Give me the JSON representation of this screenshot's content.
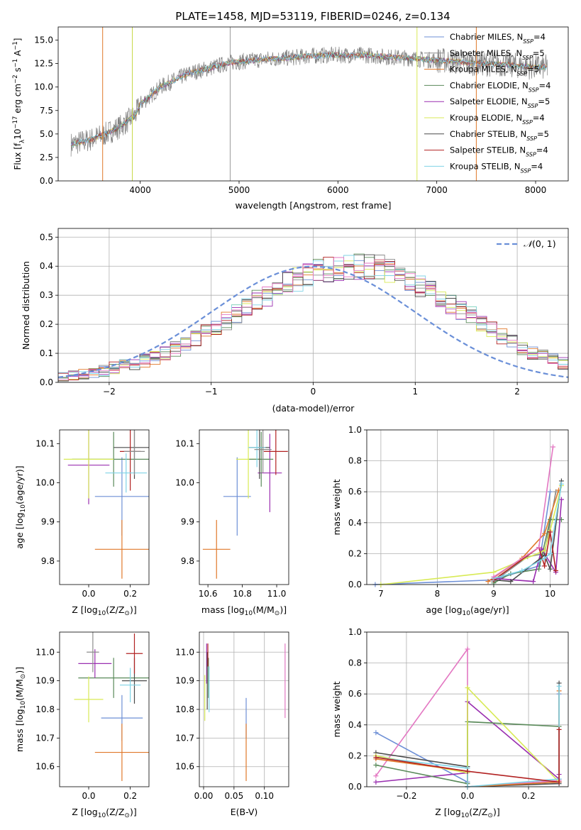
{
  "title": "PLATE=1458, MJD=53119, FIBERID=0246, z=0.134",
  "colors": {
    "Chabrier MILES": "#6d8fd6",
    "Salpeter MILES": "#8c8c8c",
    "Kroupa MILES": "#e0782a",
    "Chabrier ELODIE": "#5a8a5a",
    "Salpeter ELODIE": "#9a2fb0",
    "Kroupa ELODIE": "#d8ea55",
    "Chabrier STELIB": "#4a4a4a",
    "Salpeter STELIB": "#b22222",
    "Kroupa STELIB": "#7fd3e6",
    "gaussian": "#6a8fd8"
  },
  "chart_data": [
    {
      "id": "spectrum",
      "type": "line",
      "xlabel": "wavelength [Angstrom, rest frame]",
      "ylabel": "Flux [f$_λ$10$^{-17}$ erg cm$^{-2}$ s$^{-1}$ A$^{-1}$]",
      "ylabel_parts": {
        "a": "Flux [f",
        "b": "λ",
        "c": "10",
        "d": "−17",
        "e": " erg cm",
        "f": "−2",
        "g": " s",
        "h": "−1",
        "i": " A",
        "j": "−1",
        "k": "]"
      },
      "xlim": [
        3170,
        8330
      ],
      "ylim": [
        0,
        16.4
      ],
      "xticks": [
        4000,
        5000,
        6000,
        7000,
        8000
      ],
      "yticks": [
        0.0,
        2.5,
        5.0,
        7.5,
        10.0,
        12.5,
        15.0
      ],
      "ytick_labels": [
        "0.0",
        "2.5",
        "5.0",
        "7.5",
        "10.0",
        "12.5",
        "15.0"
      ],
      "data_trend": {
        "x": [
          3300,
          3500,
          3650,
          3800,
          3950,
          4000,
          4100,
          4200,
          4300,
          4400,
          4500,
          4700,
          4900,
          5100,
          5300,
          5500,
          5700,
          5900,
          6100,
          6300,
          6500,
          6700,
          6900,
          7100,
          7300,
          7500,
          7700,
          7900,
          8100
        ],
        "y": [
          3.9,
          4.4,
          5.0,
          5.8,
          7.0,
          8.2,
          9.0,
          10.0,
          10.5,
          11.0,
          11.5,
          12.0,
          12.6,
          12.8,
          13.0,
          13.1,
          13.3,
          13.4,
          13.4,
          13.4,
          13.2,
          13.1,
          12.9,
          12.8,
          12.6,
          12.5,
          12.4,
          12.2,
          12.1
        ]
      },
      "legend_position": "upper-right",
      "legend": [
        {
          "model": "Chabrier MILES",
          "label": "Chabrier MILES, N",
          "sub": "SSP",
          "val": "=4"
        },
        {
          "model": "Salpeter MILES",
          "label": "Salpeter MILES, N",
          "sub": "SSP",
          "val": "=5"
        },
        {
          "model": "Kroupa MILES",
          "label": "Kroupa MILES, N",
          "sub": "SSP",
          "val": "=5"
        },
        {
          "model": "Chabrier ELODIE",
          "label": "Chabrier ELODIE, N",
          "sub": "SSP",
          "val": "=4"
        },
        {
          "model": "Salpeter ELODIE",
          "label": "Salpeter ELODIE, N",
          "sub": "SSP",
          "val": "=5"
        },
        {
          "model": "Kroupa ELODIE",
          "label": "Kroupa ELODIE, N",
          "sub": "SSP",
          "val": "=4"
        },
        {
          "model": "Chabrier STELIB",
          "label": "Chabrier STELIB, N",
          "sub": "SSP",
          "val": "=5"
        },
        {
          "model": "Salpeter STELIB",
          "label": "Salpeter STELIB, N",
          "sub": "SSP",
          "val": "=4"
        },
        {
          "model": "Kroupa STELIB",
          "label": "Kroupa STELIB, N",
          "sub": "SSP",
          "val": "=4"
        }
      ]
    },
    {
      "id": "residuals",
      "type": "bar",
      "xlabel": "(data-model)/error",
      "ylabel": "Normed distribution",
      "xlim": [
        -2.5,
        2.5
      ],
      "ylim": [
        0,
        0.53
      ],
      "xticks": [
        -2,
        -1,
        0,
        1,
        2
      ],
      "xtick_labels": [
        "−2",
        "−1",
        "0",
        "1",
        "2"
      ],
      "yticks": [
        0.0,
        0.1,
        0.2,
        0.3,
        0.4,
        0.5
      ],
      "ytick_labels": [
        "0.0",
        "0.1",
        "0.2",
        "0.3",
        "0.4",
        "0.5"
      ],
      "grid": true,
      "bin_width": 0.1,
      "bin_start": -2.5,
      "base_hist": [
        0.02,
        0.025,
        0.03,
        0.035,
        0.04,
        0.05,
        0.06,
        0.065,
        0.075,
        0.085,
        0.1,
        0.115,
        0.13,
        0.15,
        0.17,
        0.19,
        0.21,
        0.235,
        0.26,
        0.28,
        0.3,
        0.32,
        0.34,
        0.355,
        0.37,
        0.38,
        0.39,
        0.395,
        0.4,
        0.4,
        0.4,
        0.395,
        0.38,
        0.37,
        0.35,
        0.335,
        0.31,
        0.29,
        0.27,
        0.25,
        0.23,
        0.2,
        0.18,
        0.16,
        0.14,
        0.12,
        0.1,
        0.09,
        0.075,
        0.065,
        0.055,
        0.045,
        0.04,
        0.035,
        0.03,
        0.03
      ],
      "gaussian": {
        "label_prefix": "𝒩",
        "label_suffix": "(0, 1)",
        "mu": 0,
        "sigma": 1
      },
      "legend_position": "upper-right"
    },
    {
      "id": "age-vs-Z",
      "type": "scatter",
      "xlabel_parts": {
        "a": "Z [log",
        "b": "10",
        "c": "(Z/Z",
        "d": "⊙",
        "e": ")]"
      },
      "ylabel_parts": {
        "a": "age  [log",
        "b": "10",
        "c": "(age/yr)]"
      },
      "xlim": [
        -0.14,
        0.29
      ],
      "ylim": [
        9.74,
        10.135
      ],
      "xticks": [
        0.0,
        0.2
      ],
      "xtick_labels": [
        "0.0",
        "0.2"
      ],
      "yticks": [
        9.8,
        9.9,
        10.0,
        10.1
      ],
      "ytick_labels": [
        "9.8",
        "9.9",
        "10.0",
        "10.1"
      ],
      "points": [
        {
          "model": "Chabrier MILES",
          "x": 0.16,
          "xerr": 0.13,
          "y": 9.965,
          "yerr": 0.1
        },
        {
          "model": "Kroupa MILES",
          "x": 0.16,
          "xerr": 0.13,
          "y": 9.83,
          "yerr": 0.075
        },
        {
          "model": "Chabrier ELODIE",
          "x": 0.12,
          "xerr": 0.2,
          "y": 10.06,
          "yerr": 0.07
        },
        {
          "model": "Salpeter ELODIE",
          "x": 0.0,
          "xerr": 0.1,
          "y": 10.045,
          "yerr": 0.1
        },
        {
          "model": "Kroupa ELODIE",
          "x": 0.0,
          "xerr": 0.12,
          "y": 10.06,
          "yerr": 0.1
        },
        {
          "model": "Chabrier STELIB",
          "x": 0.22,
          "xerr": 0.1,
          "y": 10.09,
          "yerr": 0.08
        },
        {
          "model": "Salpeter STELIB",
          "x": 0.2,
          "xerr": 0.05,
          "y": 10.08,
          "yerr": 0.1
        },
        {
          "model": "Kroupa STELIB",
          "x": 0.18,
          "xerr": 0.1,
          "y": 10.025,
          "yerr": 0.05
        },
        {
          "model": "Salpeter MILES",
          "x": 0.22,
          "xerr": 0.05,
          "y": 10.08,
          "yerr": 0.06
        }
      ]
    },
    {
      "id": "age-vs-mass",
      "type": "scatter",
      "xlabel_parts": {
        "a": "mass [log",
        "b": "10",
        "c": "(M/M",
        "d": "⊙",
        "e": ")]"
      },
      "xlim": [
        10.55,
        11.07
      ],
      "ylim": [
        9.74,
        10.135
      ],
      "xticks": [
        10.6,
        10.8,
        11.0
      ],
      "xtick_labels": [
        "10.6",
        "10.8",
        "11.0"
      ],
      "yticks": [
        9.8,
        9.9,
        10.0,
        10.1
      ],
      "ytick_labels": [
        "9.8",
        "9.9",
        "10.0",
        "10.1"
      ],
      "points": [
        {
          "model": "Chabrier MILES",
          "x": 10.77,
          "xerr": 0.08,
          "y": 9.965,
          "yerr": 0.1
        },
        {
          "model": "Kroupa MILES",
          "x": 10.65,
          "xerr": 0.08,
          "y": 9.83,
          "yerr": 0.075
        },
        {
          "model": "Kroupa ELODIE",
          "x": 10.835,
          "xerr": 0.07,
          "y": 10.06,
          "yerr": 0.1
        },
        {
          "model": "Salpeter ELODIE",
          "x": 10.96,
          "xerr": 0.07,
          "y": 10.025,
          "yerr": 0.1
        },
        {
          "model": "Chabrier ELODIE",
          "x": 10.91,
          "xerr": 0.07,
          "y": 10.06,
          "yerr": 0.07
        },
        {
          "model": "Chabrier STELIB",
          "x": 10.9,
          "xerr": 0.06,
          "y": 10.09,
          "yerr": 0.08
        },
        {
          "model": "Salpeter STELIB",
          "x": 10.995,
          "xerr": 0.07,
          "y": 10.08,
          "yerr": 0.06
        },
        {
          "model": "Kroupa STELIB",
          "x": 10.885,
          "xerr": 0.05,
          "y": 10.09,
          "yerr": 0.05
        },
        {
          "model": "Salpeter MILES",
          "x": 10.92,
          "xerr": 0.05,
          "y": 10.085,
          "yerr": 0.06
        }
      ]
    },
    {
      "id": "massweight-vs-age",
      "type": "line",
      "xlabel_parts": {
        "a": "age  [log",
        "b": "10",
        "c": "(age/yr)]"
      },
      "ylabel": "mass weight",
      "xlim": [
        6.75,
        10.32
      ],
      "ylim": [
        0,
        1.0
      ],
      "xticks": [
        7,
        8,
        9,
        10
      ],
      "xtick_labels": [
        "7",
        "8",
        "9",
        "10"
      ],
      "yticks": [
        0.0,
        0.2,
        0.4,
        0.6,
        0.8,
        1.0
      ],
      "ytick_labels": [
        "0.0",
        "0.2",
        "0.4",
        "0.6",
        "0.8",
        "1.0"
      ],
      "grid": true,
      "series": [
        {
          "model": "Chabrier MILES",
          "x": [
            6.9,
            9.0,
            9.8,
            10.0
          ],
          "y": [
            0.0,
            0.03,
            0.12,
            0.6
          ]
        },
        {
          "model": "Salpeter MILES",
          "x": [
            9.0,
            9.6,
            9.9,
            10.1
          ],
          "y": [
            0.02,
            0.18,
            0.2,
            0.6
          ]
        },
        {
          "model": "Kroupa MILES",
          "x": [
            8.9,
            9.5,
            9.9,
            10.15
          ],
          "y": [
            0.02,
            0.17,
            0.33,
            0.61
          ]
        },
        {
          "model": "Chabrier ELODIE",
          "x": [
            9.0,
            9.3,
            9.8,
            10.0,
            10.2
          ],
          "y": [
            0.01,
            0.07,
            0.1,
            0.42,
            0.42
          ]
        },
        {
          "model": "Salpeter ELODIE",
          "x": [
            9.0,
            9.7,
            9.85,
            10.1,
            10.2
          ],
          "y": [
            0.04,
            0.02,
            0.23,
            0.08,
            0.55
          ]
        },
        {
          "model": "Kroupa ELODIE",
          "x": [
            7.0,
            9.0,
            9.9,
            10.0,
            10.2
          ],
          "y": [
            0.0,
            0.08,
            0.22,
            0.35,
            0.64
          ]
        },
        {
          "model": "Chabrier STELIB",
          "x": [
            9.0,
            9.3,
            9.9,
            10.0,
            10.2
          ],
          "y": [
            0.03,
            0.02,
            0.19,
            0.1,
            0.67
          ]
        },
        {
          "model": "Salpeter STELIB",
          "x": [
            9.0,
            9.8,
            9.9,
            10.0,
            10.1
          ],
          "y": [
            0.03,
            0.24,
            0.12,
            0.34,
            0.09
          ]
        },
        {
          "model": "Kroupa STELIB",
          "x": [
            9.0,
            9.5,
            9.9,
            10.0,
            10.2
          ],
          "y": [
            0.04,
            0.09,
            0.17,
            0.2,
            0.65
          ]
        },
        {
          "model": "pink",
          "x": [
            9.0,
            9.8,
            10.05
          ],
          "y": [
            0.05,
            0.24,
            0.89
          ]
        }
      ]
    },
    {
      "id": "mass-vs-Z",
      "type": "scatter",
      "xlabel_parts": {
        "a": "Z [log",
        "b": "10",
        "c": "(Z/Z",
        "d": "⊙",
        "e": ")]"
      },
      "ylabel_parts": {
        "a": "mass [log",
        "b": "10",
        "c": "(M/M",
        "d": "⊙",
        "e": ")]"
      },
      "xlim": [
        -0.14,
        0.29
      ],
      "ylim": [
        10.53,
        11.07
      ],
      "xticks": [
        0.0,
        0.2
      ],
      "xtick_labels": [
        "0.0",
        "0.2"
      ],
      "yticks": [
        10.6,
        10.7,
        10.8,
        10.9,
        11.0
      ],
      "ytick_labels": [
        "10.6",
        "10.7",
        "10.8",
        "10.9",
        "11.0"
      ],
      "points": [
        {
          "model": "Chabrier MILES",
          "x": 0.16,
          "xerr": 0.1,
          "y": 10.77,
          "yerr": 0.08
        },
        {
          "model": "Kroupa MILES",
          "x": 0.16,
          "xerr": 0.13,
          "y": 10.65,
          "yerr": 0.1
        },
        {
          "model": "Chabrier ELODIE",
          "x": 0.12,
          "xerr": 0.17,
          "y": 10.91,
          "yerr": 0.07
        },
        {
          "model": "Salpeter ELODIE",
          "x": 0.03,
          "xerr": 0.08,
          "y": 10.96,
          "yerr": 0.05
        },
        {
          "model": "Kroupa ELODIE",
          "x": 0.0,
          "xerr": 0.07,
          "y": 10.835,
          "yerr": 0.08
        },
        {
          "model": "Chabrier STELIB",
          "x": 0.22,
          "xerr": 0.06,
          "y": 10.9,
          "yerr": 0.08
        },
        {
          "model": "Salpeter STELIB",
          "x": 0.22,
          "xerr": 0.04,
          "y": 10.995,
          "yerr": 0.07
        },
        {
          "model": "Kroupa STELIB",
          "x": 0.2,
          "xerr": 0.05,
          "y": 10.885,
          "yerr": 0.06
        },
        {
          "model": "Salpeter MILES",
          "x": 0.02,
          "xerr": 0.03,
          "y": 11.0,
          "yerr": 0.07
        }
      ]
    },
    {
      "id": "mass-vs-EBV",
      "type": "scatter",
      "xlabel": "E(B-V)",
      "xlim": [
        -0.007,
        0.14
      ],
      "ylim": [
        10.53,
        11.07
      ],
      "xticks": [
        0.0,
        0.05,
        0.1
      ],
      "xtick_labels": [
        "0.00",
        "0.05",
        "0.10"
      ],
      "yticks": [
        10.6,
        10.7,
        10.8,
        10.9,
        11.0
      ],
      "ytick_labels": [
        "10.6",
        "10.7",
        "10.8",
        "10.9",
        "11.0"
      ],
      "grid": true,
      "points": [
        {
          "model": "Chabrier MILES",
          "x": 0.07,
          "y": 10.77,
          "yerr": 0.07
        },
        {
          "model": "Kroupa MILES",
          "x": 0.07,
          "y": 10.65,
          "yerr": 0.1
        },
        {
          "model": "Kroupa ELODIE",
          "x": 0.002,
          "y": 10.84,
          "yerr": 0.08
        },
        {
          "model": "Salpeter ELODIE",
          "x": 0.005,
          "y": 10.96,
          "yerr": 0.07
        },
        {
          "model": "Chabrier ELODIE",
          "x": 0.008,
          "y": 10.91,
          "yerr": 0.07
        },
        {
          "model": "Chabrier STELIB",
          "x": 0.006,
          "y": 10.9,
          "yerr": 0.1
        },
        {
          "model": "Salpeter STELIB",
          "x": 0.007,
          "y": 10.99,
          "yerr": 0.04
        },
        {
          "model": "Kroupa STELIB",
          "x": 0.009,
          "y": 10.87,
          "yerr": 0.08
        },
        {
          "model": "pink",
          "x": 0.134,
          "y": 10.9,
          "yerr": 0.13
        }
      ]
    },
    {
      "id": "massweight-vs-Z",
      "type": "line",
      "xlabel_parts": {
        "a": "Z [log",
        "b": "10",
        "c": "(Z/Z",
        "d": "⊙",
        "e": ")]"
      },
      "ylabel": "mass weight",
      "xlim": [
        -0.33,
        0.33
      ],
      "ylim": [
        0,
        1.0
      ],
      "xticks": [
        -0.2,
        0.0,
        0.2
      ],
      "xtick_labels": [
        "−0.2",
        "0.0",
        "0.2"
      ],
      "yticks": [
        0.0,
        0.2,
        0.4,
        0.6,
        0.8,
        1.0
      ],
      "ytick_labels": [
        "0.0",
        "0.2",
        "0.4",
        "0.6",
        "0.8",
        "1.0"
      ],
      "grid": true,
      "series": [
        {
          "model": "Chabrier MILES",
          "x": [
            -0.3,
            0.0,
            0.0,
            0.3,
            0.3
          ],
          "y": [
            0.35,
            0.03,
            0.0,
            0.03,
            0.6
          ]
        },
        {
          "model": "pink",
          "x": [
            -0.3,
            0.0,
            0.0,
            0.3
          ],
          "y": [
            0.07,
            0.89,
            0.0,
            0.04
          ]
        },
        {
          "model": "Salpeter ELODIE",
          "x": [
            -0.3,
            0.0,
            0.0,
            0.3,
            0.3
          ],
          "y": [
            0.03,
            0.09,
            0.55,
            0.05,
            0.08
          ]
        },
        {
          "model": "Chabrier STELIB",
          "x": [
            -0.3,
            0.0,
            0.0,
            0.3,
            0.3
          ],
          "y": [
            0.22,
            0.13,
            0.0,
            0.02,
            0.67
          ]
        },
        {
          "model": "Chabrier ELODIE",
          "x": [
            -0.3,
            0.0,
            0.0,
            0.3
          ],
          "y": [
            0.14,
            0.02,
            0.42,
            0.39
          ]
        },
        {
          "model": "Kroupa ELODIE",
          "x": [
            -0.3,
            0.0,
            0.0,
            0.3
          ],
          "y": [
            0.2,
            0.09,
            0.64,
            0.03
          ]
        },
        {
          "model": "Kroupa MILES",
          "x": [
            -0.3,
            0.0,
            0.0,
            0.3,
            0.3
          ],
          "y": [
            0.18,
            0.1,
            0.0,
            0.03,
            0.62
          ]
        },
        {
          "model": "Kroupa STELIB",
          "x": [
            -0.3,
            0.0,
            0.0,
            0.3,
            0.3
          ],
          "y": [
            0.19,
            0.12,
            0.0,
            0.05,
            0.65
          ]
        },
        {
          "model": "Salpeter STELIB",
          "x": [
            -0.3,
            0.0,
            0.3,
            0.3
          ],
          "y": [
            0.19,
            0.1,
            0.03,
            0.37
          ]
        }
      ]
    }
  ]
}
